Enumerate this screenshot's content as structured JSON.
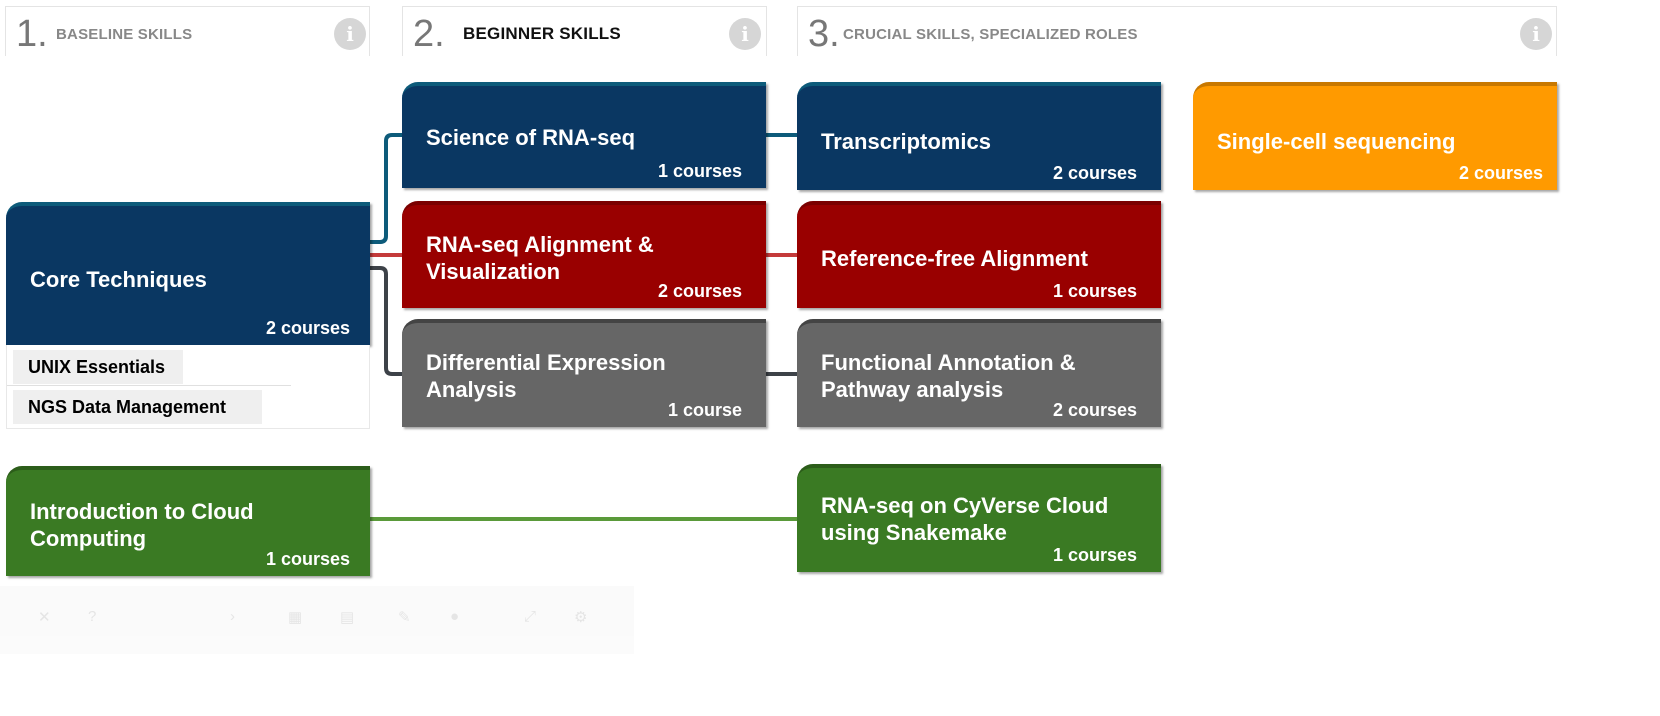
{
  "columns": [
    {
      "number": "1.",
      "title": "BASELINE SKILLS",
      "info": "i"
    },
    {
      "number": "2.",
      "title": "BEGINNER SKILLS",
      "info": "i"
    },
    {
      "number": "3.",
      "title": "CRUCIAL SKILLS, SPECIALIZED ROLES",
      "info": "i"
    }
  ],
  "cards": {
    "core": {
      "title": "Core Techniques",
      "count": "2 courses",
      "subitems": [
        "UNIX Essentials",
        "NGS Data Management"
      ]
    },
    "cloud": {
      "title": "Introduction to Cloud Computing",
      "count": "1 courses"
    },
    "science": {
      "title": "Science of RNA-seq",
      "count": "1 courses"
    },
    "alignment": {
      "title": "RNA-seq Alignment & Visualization",
      "count": "2 courses"
    },
    "diffexp": {
      "title": "Differential Expression Analysis",
      "count": "1 course"
    },
    "transcriptomics": {
      "title": "Transcriptomics",
      "count": "2 courses"
    },
    "reffree": {
      "title": "Reference-free Alignment",
      "count": "1 courses"
    },
    "functional": {
      "title": "Functional Annotation & Pathway analysis",
      "count": "2 courses"
    },
    "cyverse": {
      "title": "RNA-seq on CyVerse Cloud using Snakemake",
      "count": "1 courses"
    },
    "singlecell": {
      "title": "Single-cell sequencing",
      "count": "2 courses"
    }
  },
  "colors": {
    "blue": "#0a3762",
    "red": "#990000",
    "gray": "#666666",
    "green": "#3a7a23",
    "orange": "#ff9a00",
    "connector_blue": "#0d5b7a",
    "connector_red": "#c43a3a",
    "connector_gray": "#3d4248",
    "connector_green": "#5a9a3a"
  }
}
